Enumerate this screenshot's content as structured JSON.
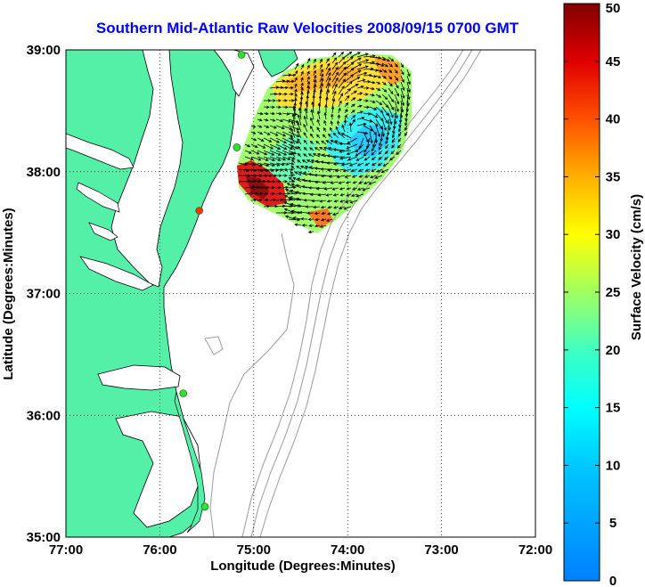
{
  "title": "Southern Mid-Atlantic Raw Velocities 2008/09/15 0700 GMT",
  "map": {
    "x_axis_label": "Longitude (Degrees:Minutes)",
    "y_axis_label": "Latitude (Degrees:Minutes)",
    "lon_range": [
      -77,
      -72
    ],
    "lat_range": [
      35,
      39
    ],
    "lon_ticks": [
      {
        "value": -77,
        "label": "77:00"
      },
      {
        "value": -76,
        "label": "76:00"
      },
      {
        "value": -75,
        "label": "75:00"
      },
      {
        "value": -74,
        "label": "74:00"
      },
      {
        "value": -73,
        "label": "73:00"
      },
      {
        "value": -72,
        "label": "72:00"
      }
    ],
    "lat_ticks": [
      {
        "value": 39,
        "label": "39:00"
      },
      {
        "value": 38,
        "label": "38:00"
      },
      {
        "value": 37,
        "label": "37:00"
      },
      {
        "value": 36,
        "label": "36:00"
      },
      {
        "value": 35,
        "label": "35:00"
      }
    ],
    "grid": "dotted",
    "land_color": "#55f0a8",
    "arrow_color": "#000000",
    "isobath_color": "#9a9a9a",
    "radar_sites": [
      {
        "lon": -75.13,
        "lat": 38.96,
        "color": "#33dd33"
      },
      {
        "lon": -75.18,
        "lat": 38.2,
        "color": "#33dd33"
      },
      {
        "lon": -75.58,
        "lat": 37.68,
        "color": "#ff3300"
      },
      {
        "lon": -75.75,
        "lat": 36.18,
        "color": "#33dd33"
      },
      {
        "lon": -75.52,
        "lat": 35.25,
        "color": "#33dd33"
      }
    ]
  },
  "colorbar": {
    "label": "Surface Velocity (cm/s)",
    "min": 0,
    "max": 50,
    "ticks": [
      "0",
      "5",
      "10",
      "15",
      "20",
      "25",
      "30",
      "35",
      "40",
      "45",
      "50"
    ]
  }
}
